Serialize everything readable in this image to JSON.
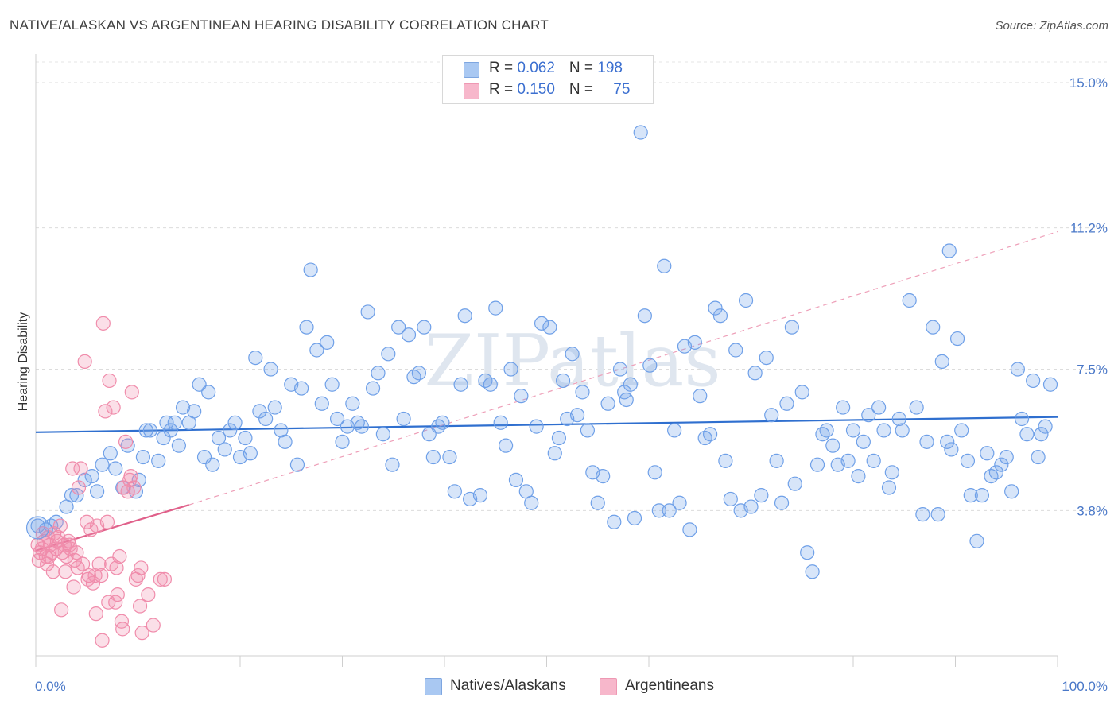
{
  "title": "NATIVE/ALASKAN VS ARGENTINEAN HEARING DISABILITY CORRELATION CHART",
  "source": "Source: ZipAtlas.com",
  "watermark": "ZIPatlas",
  "legend": {
    "rows": [
      {
        "r_label": "R = ",
        "r_value": "0.062",
        "n_label": "N = ",
        "n_value": "198",
        "color": "#a9c8f2"
      },
      {
        "r_label": "R = ",
        "r_value": "0.150",
        "n_label": "N = ",
        "n_value": "75",
        "color": "#f7b7cb"
      }
    ]
  },
  "bottom_legend": [
    {
      "label": "Natives/Alaskans",
      "color": "#a9c8f2"
    },
    {
      "label": "Argentineans",
      "color": "#f7b7cb"
    }
  ],
  "chart_data": {
    "type": "scatter",
    "title": "NATIVE/ALASKAN VS ARGENTINEAN HEARING DISABILITY CORRELATION CHART",
    "xlabel": "",
    "ylabel": "Hearing Disability",
    "xlim": [
      0,
      100
    ],
    "ylim": [
      0,
      15.5
    ],
    "x_tick_labels": [
      "0.0%",
      "100.0%"
    ],
    "y_ticks": [
      3.8,
      7.5,
      11.2,
      15.0
    ],
    "y_tick_labels": [
      "3.8%",
      "7.5%",
      "11.2%",
      "15.0%"
    ],
    "grid": true,
    "legend_position": "top-center",
    "series": [
      {
        "name": "Natives/Alaskans",
        "color": "#6fa0e8",
        "trend": {
          "x": [
            0,
            100
          ],
          "y": [
            5.85,
            6.25
          ],
          "style": "solid",
          "color": "#2f6fcf"
        },
        "points": [
          [
            0.2,
            3.4
          ],
          [
            1.0,
            3.3
          ],
          [
            1.5,
            3.4
          ],
          [
            2.0,
            3.5
          ],
          [
            3.0,
            3.9
          ],
          [
            3.5,
            4.2
          ],
          [
            4.0,
            4.2
          ],
          [
            4.8,
            4.6
          ],
          [
            5.5,
            4.7
          ],
          [
            6.0,
            4.3
          ],
          [
            6.5,
            5.0
          ],
          [
            7.3,
            5.3
          ],
          [
            7.8,
            4.9
          ],
          [
            8.5,
            4.4
          ],
          [
            9.0,
            5.5
          ],
          [
            9.8,
            4.3
          ],
          [
            10.1,
            4.6
          ],
          [
            10.5,
            5.2
          ],
          [
            10.8,
            5.9
          ],
          [
            11.2,
            5.9
          ],
          [
            12.0,
            5.1
          ],
          [
            12.5,
            5.7
          ],
          [
            12.8,
            6.1
          ],
          [
            13.2,
            5.9
          ],
          [
            13.6,
            6.1
          ],
          [
            14.0,
            5.5
          ],
          [
            14.4,
            6.5
          ],
          [
            15.0,
            6.1
          ],
          [
            15.5,
            6.4
          ],
          [
            16.0,
            7.1
          ],
          [
            16.5,
            5.2
          ],
          [
            16.9,
            6.9
          ],
          [
            17.3,
            5.0
          ],
          [
            17.9,
            5.7
          ],
          [
            18.5,
            5.4
          ],
          [
            19.0,
            5.9
          ],
          [
            19.5,
            6.1
          ],
          [
            20.0,
            5.2
          ],
          [
            20.5,
            5.7
          ],
          [
            21.0,
            5.3
          ],
          [
            21.5,
            7.8
          ],
          [
            21.9,
            6.4
          ],
          [
            22.5,
            6.2
          ],
          [
            23.0,
            7.5
          ],
          [
            23.4,
            6.5
          ],
          [
            24.0,
            5.9
          ],
          [
            24.4,
            5.6
          ],
          [
            25.0,
            7.1
          ],
          [
            25.6,
            5.0
          ],
          [
            26.0,
            7.0
          ],
          [
            26.5,
            8.6
          ],
          [
            26.9,
            10.1
          ],
          [
            27.5,
            8.0
          ],
          [
            28.0,
            6.6
          ],
          [
            28.5,
            8.2
          ],
          [
            29.0,
            7.1
          ],
          [
            29.5,
            6.2
          ],
          [
            30.0,
            5.6
          ],
          [
            30.5,
            6.0
          ],
          [
            31.0,
            6.6
          ],
          [
            31.5,
            6.1
          ],
          [
            31.9,
            6.0
          ],
          [
            32.5,
            9.0
          ],
          [
            33.0,
            7.0
          ],
          [
            33.5,
            7.4
          ],
          [
            34.0,
            5.8
          ],
          [
            34.5,
            7.9
          ],
          [
            34.9,
            5.0
          ],
          [
            35.5,
            8.6
          ],
          [
            36.0,
            6.2
          ],
          [
            36.5,
            8.4
          ],
          [
            37.0,
            7.3
          ],
          [
            37.5,
            7.4
          ],
          [
            38.0,
            8.6
          ],
          [
            38.5,
            5.8
          ],
          [
            38.9,
            5.2
          ],
          [
            39.4,
            6.0
          ],
          [
            39.8,
            6.1
          ],
          [
            40.5,
            5.2
          ],
          [
            41.0,
            4.3
          ],
          [
            41.6,
            7.1
          ],
          [
            42.0,
            8.9
          ],
          [
            42.5,
            4.1
          ],
          [
            43.5,
            4.2
          ],
          [
            44.0,
            7.2
          ],
          [
            44.5,
            7.1
          ],
          [
            45.0,
            9.1
          ],
          [
            45.5,
            6.1
          ],
          [
            46.0,
            5.5
          ],
          [
            46.5,
            7.5
          ],
          [
            47.0,
            4.6
          ],
          [
            47.5,
            6.8
          ],
          [
            48.0,
            4.3
          ],
          [
            48.5,
            4.0
          ],
          [
            49.0,
            6.0
          ],
          [
            49.5,
            8.7
          ],
          [
            50.3,
            8.6
          ],
          [
            50.8,
            5.3
          ],
          [
            51.2,
            5.7
          ],
          [
            51.6,
            7.2
          ],
          [
            52.0,
            6.2
          ],
          [
            52.5,
            7.9
          ],
          [
            53.0,
            6.3
          ],
          [
            53.5,
            6.9
          ],
          [
            54.0,
            5.9
          ],
          [
            54.5,
            4.8
          ],
          [
            55.0,
            4.0
          ],
          [
            55.5,
            4.7
          ],
          [
            56.0,
            6.6
          ],
          [
            56.6,
            3.5
          ],
          [
            57.2,
            7.5
          ],
          [
            57.6,
            6.9
          ],
          [
            58.2,
            7.1
          ],
          [
            58.6,
            3.6
          ],
          [
            59.2,
            13.7
          ],
          [
            59.6,
            8.9
          ],
          [
            60.1,
            7.6
          ],
          [
            60.6,
            4.8
          ],
          [
            61.0,
            3.8
          ],
          [
            61.5,
            10.2
          ],
          [
            62.0,
            3.8
          ],
          [
            62.5,
            5.9
          ],
          [
            63.0,
            4.0
          ],
          [
            63.5,
            8.1
          ],
          [
            64.0,
            3.3
          ],
          [
            64.5,
            8.2
          ],
          [
            65.0,
            6.8
          ],
          [
            65.5,
            5.7
          ],
          [
            66.0,
            5.8
          ],
          [
            66.5,
            9.1
          ],
          [
            67.0,
            8.9
          ],
          [
            67.5,
            5.1
          ],
          [
            68.0,
            4.1
          ],
          [
            68.5,
            8.0
          ],
          [
            69.0,
            3.8
          ],
          [
            69.5,
            9.3
          ],
          [
            70.0,
            3.9
          ],
          [
            70.4,
            7.4
          ],
          [
            71.0,
            4.2
          ],
          [
            71.5,
            7.8
          ],
          [
            72.0,
            6.3
          ],
          [
            72.5,
            5.1
          ],
          [
            73.0,
            4.0
          ],
          [
            73.5,
            6.6
          ],
          [
            74.0,
            8.6
          ],
          [
            74.3,
            4.5
          ],
          [
            75.0,
            6.9
          ],
          [
            75.5,
            2.7
          ],
          [
            76.0,
            2.2
          ],
          [
            76.5,
            5.0
          ],
          [
            77.0,
            5.8
          ],
          [
            77.4,
            5.9
          ],
          [
            78.0,
            5.5
          ],
          [
            78.5,
            5.0
          ],
          [
            79.0,
            6.5
          ],
          [
            79.5,
            5.1
          ],
          [
            80.0,
            5.9
          ],
          [
            80.5,
            4.7
          ],
          [
            81.0,
            5.6
          ],
          [
            81.5,
            6.3
          ],
          [
            82.0,
            5.1
          ],
          [
            82.5,
            6.5
          ],
          [
            83.0,
            5.9
          ],
          [
            83.5,
            4.4
          ],
          [
            83.8,
            4.8
          ],
          [
            84.5,
            6.2
          ],
          [
            84.8,
            5.9
          ],
          [
            85.5,
            9.3
          ],
          [
            86.2,
            6.5
          ],
          [
            86.8,
            3.7
          ],
          [
            87.2,
            5.6
          ],
          [
            87.8,
            8.6
          ],
          [
            88.3,
            3.7
          ],
          [
            88.7,
            7.7
          ],
          [
            89.2,
            5.6
          ],
          [
            89.6,
            5.4
          ],
          [
            90.2,
            8.3
          ],
          [
            90.6,
            5.9
          ],
          [
            91.2,
            5.1
          ],
          [
            91.5,
            4.2
          ],
          [
            92.1,
            3.0
          ],
          [
            92.6,
            4.2
          ],
          [
            93.1,
            5.3
          ],
          [
            93.5,
            4.7
          ],
          [
            94.0,
            4.8
          ],
          [
            94.5,
            5.0
          ],
          [
            95.0,
            5.2
          ],
          [
            95.5,
            4.3
          ],
          [
            96.1,
            7.5
          ],
          [
            96.5,
            6.2
          ],
          [
            97.0,
            5.8
          ],
          [
            97.6,
            7.2
          ],
          [
            98.1,
            5.2
          ],
          [
            98.4,
            5.8
          ],
          [
            98.8,
            6.0
          ],
          [
            99.3,
            7.1
          ],
          [
            89.4,
            10.6
          ],
          [
            57.8,
            6.7
          ]
        ]
      },
      {
        "name": "Argentineans",
        "color": "#f08cab",
        "trend": {
          "x": [
            0,
            15
          ],
          "y": [
            2.75,
            3.95
          ],
          "style": "solid",
          "color": "#e0608a",
          "extension": {
            "x": [
              15,
              100
            ],
            "y": [
              3.95,
              11.1
            ],
            "style": "dashed"
          }
        },
        "points": [
          [
            0.2,
            2.9
          ],
          [
            0.4,
            2.7
          ],
          [
            0.6,
            2.8
          ],
          [
            0.8,
            3.0
          ],
          [
            1.0,
            2.6
          ],
          [
            1.2,
            3.1
          ],
          [
            1.4,
            2.9
          ],
          [
            1.6,
            2.7
          ],
          [
            1.8,
            3.2
          ],
          [
            2.0,
            2.8
          ],
          [
            2.2,
            3.1
          ],
          [
            2.4,
            3.4
          ],
          [
            2.6,
            2.7
          ],
          [
            2.8,
            2.9
          ],
          [
            3.0,
            2.6
          ],
          [
            3.2,
            3.0
          ],
          [
            3.4,
            2.8
          ],
          [
            3.6,
            4.9
          ],
          [
            3.8,
            2.5
          ],
          [
            4.0,
            2.7
          ],
          [
            4.2,
            4.4
          ],
          [
            4.4,
            4.9
          ],
          [
            4.6,
            2.4
          ],
          [
            4.8,
            7.7
          ],
          [
            5.0,
            3.5
          ],
          [
            5.2,
            2.1
          ],
          [
            5.4,
            3.3
          ],
          [
            5.6,
            1.9
          ],
          [
            5.8,
            2.1
          ],
          [
            6.0,
            3.4
          ],
          [
            6.2,
            2.4
          ],
          [
            6.4,
            2.1
          ],
          [
            6.6,
            8.7
          ],
          [
            6.8,
            6.4
          ],
          [
            7.0,
            3.5
          ],
          [
            7.2,
            7.2
          ],
          [
            7.4,
            2.4
          ],
          [
            7.6,
            6.5
          ],
          [
            7.8,
            1.4
          ],
          [
            8.0,
            1.6
          ],
          [
            8.2,
            2.6
          ],
          [
            8.4,
            0.9
          ],
          [
            8.6,
            4.4
          ],
          [
            8.8,
            5.6
          ],
          [
            9.0,
            4.3
          ],
          [
            9.2,
            4.6
          ],
          [
            9.4,
            6.9
          ],
          [
            9.6,
            4.4
          ],
          [
            9.8,
            2.0
          ],
          [
            10.0,
            2.1
          ],
          [
            10.2,
            1.3
          ],
          [
            10.4,
            0.6
          ],
          [
            12.2,
            2.0
          ],
          [
            12.6,
            2.0
          ],
          [
            0.3,
            2.5
          ],
          [
            1.1,
            2.4
          ],
          [
            1.7,
            2.2
          ],
          [
            2.5,
            1.2
          ],
          [
            3.3,
            2.9
          ],
          [
            4.1,
            2.3
          ],
          [
            5.1,
            2.0
          ],
          [
            5.9,
            1.1
          ],
          [
            6.5,
            0.4
          ],
          [
            7.1,
            1.4
          ],
          [
            7.9,
            2.3
          ],
          [
            8.5,
            0.7
          ],
          [
            9.3,
            4.7
          ],
          [
            10.3,
            2.3
          ],
          [
            11.0,
            1.6
          ],
          [
            11.5,
            0.8
          ],
          [
            0.7,
            3.2
          ],
          [
            1.3,
            2.6
          ],
          [
            2.1,
            3.0
          ],
          [
            2.9,
            2.2
          ],
          [
            3.7,
            1.8
          ]
        ]
      }
    ]
  }
}
